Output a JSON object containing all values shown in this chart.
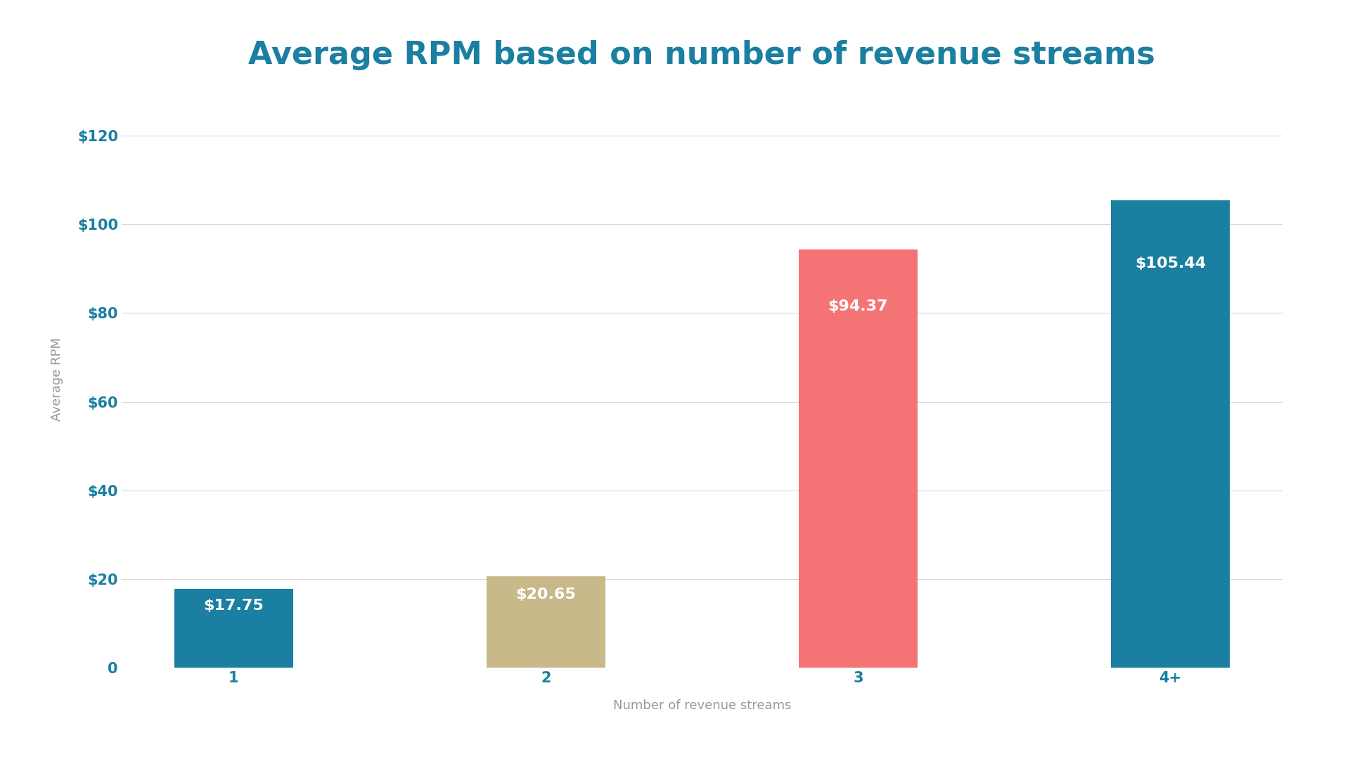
{
  "title": "Average RPM based on number of revenue streams",
  "xlabel": "Number of revenue streams",
  "ylabel": "Average RPM",
  "categories": [
    "1",
    "2",
    "3",
    "4+"
  ],
  "values": [
    17.75,
    20.65,
    94.37,
    105.44
  ],
  "bar_colors": [
    "#1a7fa0",
    "#c9b98a",
    "#f47476",
    "#1a7fa0"
  ],
  "label_texts": [
    "$17.75",
    "$20.65",
    "$94.37",
    "$105.44"
  ],
  "label_color": "#ffffff",
  "tick_color": "#1a7fa0",
  "title_color": "#1a7fa0",
  "axis_label_color": "#999999",
  "background_color": "#ffffff",
  "ylim": [
    0,
    130
  ],
  "yticks": [
    0,
    20,
    40,
    60,
    80,
    100,
    120
  ],
  "ytick_labels": [
    "0",
    "$20",
    "$40",
    "$60",
    "$80",
    "$100",
    "$120"
  ],
  "title_fontsize": 32,
  "axis_label_fontsize": 13,
  "tick_fontsize": 15,
  "bar_label_fontsize": 16,
  "bar_width": 0.38
}
